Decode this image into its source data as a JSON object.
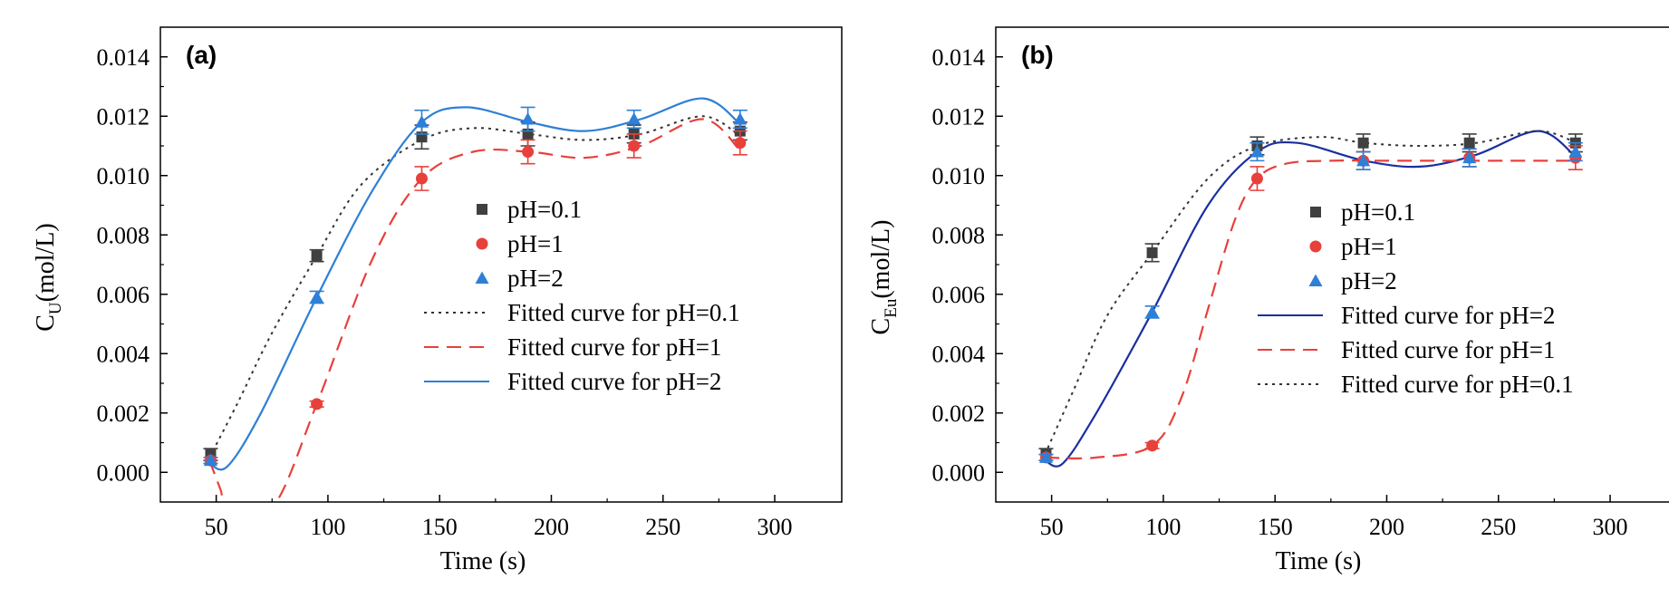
{
  "chart_data": [
    {
      "type": "scatter",
      "panel_label": "(a)",
      "xlabel": "Time (s)",
      "ylabel_main": "C",
      "ylabel_sub": "U",
      "ylabel_unit": "(mol/L)",
      "xlim": [
        25,
        330
      ],
      "ylim": [
        -0.001,
        0.015
      ],
      "xticks": [
        50,
        100,
        150,
        200,
        250,
        300
      ],
      "yticks": [
        0.0,
        0.002,
        0.004,
        0.006,
        0.008,
        0.01,
        0.012,
        0.014
      ],
      "ytick_labels": [
        "0.000",
        "0.002",
        "0.004",
        "0.006",
        "0.008",
        "0.010",
        "0.012",
        "0.014"
      ],
      "grid": false,
      "legend_position": "center-right",
      "x": [
        47.5,
        95,
        142,
        189.5,
        237,
        284.5
      ],
      "series": [
        {
          "name": "pH=0.1",
          "marker": "square",
          "color": "#404040",
          "values": [
            0.0006,
            0.0073,
            0.0113,
            0.0114,
            0.0114,
            0.0115
          ],
          "errors": [
            0.0002,
            0.0002,
            0.0004,
            0.0004,
            0.0003,
            0.0003
          ]
        },
        {
          "name": "pH=1",
          "marker": "circle",
          "color": "#e8403b",
          "values": [
            0.0004,
            0.0023,
            0.0099,
            0.0108,
            0.011,
            0.0111
          ],
          "errors": [
            0.0001,
            0.0001,
            0.0004,
            0.0004,
            0.0004,
            0.0004
          ]
        },
        {
          "name": "pH=2",
          "marker": "triangle",
          "color": "#2e7fd6",
          "values": [
            0.0004,
            0.0059,
            0.0118,
            0.0119,
            0.0119,
            0.0119
          ],
          "errors": [
            0.0001,
            0.0002,
            0.0004,
            0.0004,
            0.0003,
            0.0003
          ]
        }
      ],
      "fits": [
        {
          "name": "Fitted curve for pH=0.1",
          "style": "dotted",
          "color": "#333333",
          "x": [
            47,
            60,
            75,
            95,
            115,
            142,
            165,
            190,
            215,
            240,
            268,
            285
          ],
          "y": [
            0.0005,
            0.0024,
            0.0047,
            0.0073,
            0.0097,
            0.0112,
            0.0116,
            0.0114,
            0.0112,
            0.0114,
            0.012,
            0.0113
          ]
        },
        {
          "name": "Fitted curve for pH=1",
          "style": "dashed",
          "color": "#e8403b",
          "x": [
            47,
            52,
            55,
            75,
            95,
            120,
            142,
            165,
            190,
            215,
            240,
            268,
            285
          ],
          "y": [
            0.0004,
            -0.0006,
            -0.0012,
            -0.0012,
            0.0023,
            0.0072,
            0.0099,
            0.0108,
            0.0108,
            0.0106,
            0.011,
            0.0119,
            0.0108
          ]
        },
        {
          "name": "Fitted curve for pH=2",
          "style": "solid",
          "color": "#2e7fd6",
          "x": [
            47,
            55,
            70,
            95,
            120,
            142,
            162,
            190,
            215,
            240,
            268,
            285
          ],
          "y": [
            0.0003,
            0.0002,
            0.002,
            0.0059,
            0.0095,
            0.0118,
            0.0123,
            0.0118,
            0.0115,
            0.0119,
            0.0126,
            0.0117
          ]
        }
      ],
      "legend_entries": [
        "pH=0.1",
        "pH=1",
        "pH=2",
        "Fitted curve for pH=0.1",
        "Fitted curve for pH=1",
        "Fitted curve for pH=2"
      ]
    },
    {
      "type": "scatter",
      "panel_label": "(b)",
      "xlabel": "Time (s)",
      "ylabel_main": "C",
      "ylabel_sub": "Eu",
      "ylabel_unit": "(mol/L)",
      "xlim": [
        25,
        330
      ],
      "ylim": [
        -0.001,
        0.015
      ],
      "xticks": [
        50,
        100,
        150,
        200,
        250,
        300
      ],
      "yticks": [
        0.0,
        0.002,
        0.004,
        0.006,
        0.008,
        0.01,
        0.012,
        0.014
      ],
      "ytick_labels": [
        "0.000",
        "0.002",
        "0.004",
        "0.006",
        "0.008",
        "0.010",
        "0.012",
        "0.014"
      ],
      "grid": false,
      "legend_position": "center-right",
      "x": [
        47.5,
        95,
        142,
        189.5,
        237,
        284.5
      ],
      "series": [
        {
          "name": "pH=0.1",
          "marker": "square",
          "color": "#404040",
          "values": [
            0.0006,
            0.0074,
            0.011,
            0.0111,
            0.0111,
            0.0111
          ],
          "errors": [
            0.0002,
            0.0003,
            0.0003,
            0.0003,
            0.0003,
            0.0003
          ]
        },
        {
          "name": "pH=1",
          "marker": "circle",
          "color": "#e8403b",
          "values": [
            0.0005,
            0.0009,
            0.0099,
            0.0105,
            0.0106,
            0.0106
          ],
          "errors": [
            0.0001,
            0.0001,
            0.0004,
            0.0003,
            0.0003,
            0.0004
          ]
        },
        {
          "name": "pH=2",
          "marker": "triangle",
          "color": "#2e7fd6",
          "values": [
            0.0005,
            0.0054,
            0.0108,
            0.0105,
            0.0106,
            0.0108
          ],
          "errors": [
            0.0001,
            0.0002,
            0.0003,
            0.0003,
            0.0003,
            0.0003
          ]
        }
      ],
      "fits": [
        {
          "name": "Fitted curve for pH=2",
          "style": "solid",
          "color": "#1a2fa0",
          "x": [
            47,
            55,
            70,
            95,
            120,
            142,
            160,
            190,
            215,
            240,
            268,
            285
          ],
          "y": [
            0.0004,
            0.0003,
            0.002,
            0.0054,
            0.009,
            0.0108,
            0.0111,
            0.0105,
            0.0103,
            0.0107,
            0.0115,
            0.0106
          ]
        },
        {
          "name": "Fitted curve for pH=1",
          "style": "dashed",
          "color": "#e8403b",
          "x": [
            47,
            70,
            95,
            108,
            120,
            132,
            142,
            155,
            175,
            200,
            240,
            285
          ],
          "y": [
            0.0005,
            0.0005,
            0.0009,
            0.0025,
            0.0055,
            0.0085,
            0.0099,
            0.0104,
            0.0105,
            0.0105,
            0.0105,
            0.0105
          ]
        },
        {
          "name": "Fitted curve for pH=0.1",
          "style": "dotted",
          "color": "#333333",
          "x": [
            47,
            60,
            75,
            95,
            120,
            142,
            170,
            190,
            215,
            240,
            268,
            285
          ],
          "y": [
            0.0006,
            0.0028,
            0.0053,
            0.0074,
            0.0099,
            0.011,
            0.0113,
            0.0111,
            0.011,
            0.0111,
            0.0115,
            0.0111
          ]
        }
      ],
      "legend_entries": [
        "pH=0.1",
        "pH=1",
        "pH=2",
        "Fitted curve for pH=2",
        "Fitted curve for pH=1",
        "Fitted curve for pH=0.1"
      ]
    }
  ]
}
